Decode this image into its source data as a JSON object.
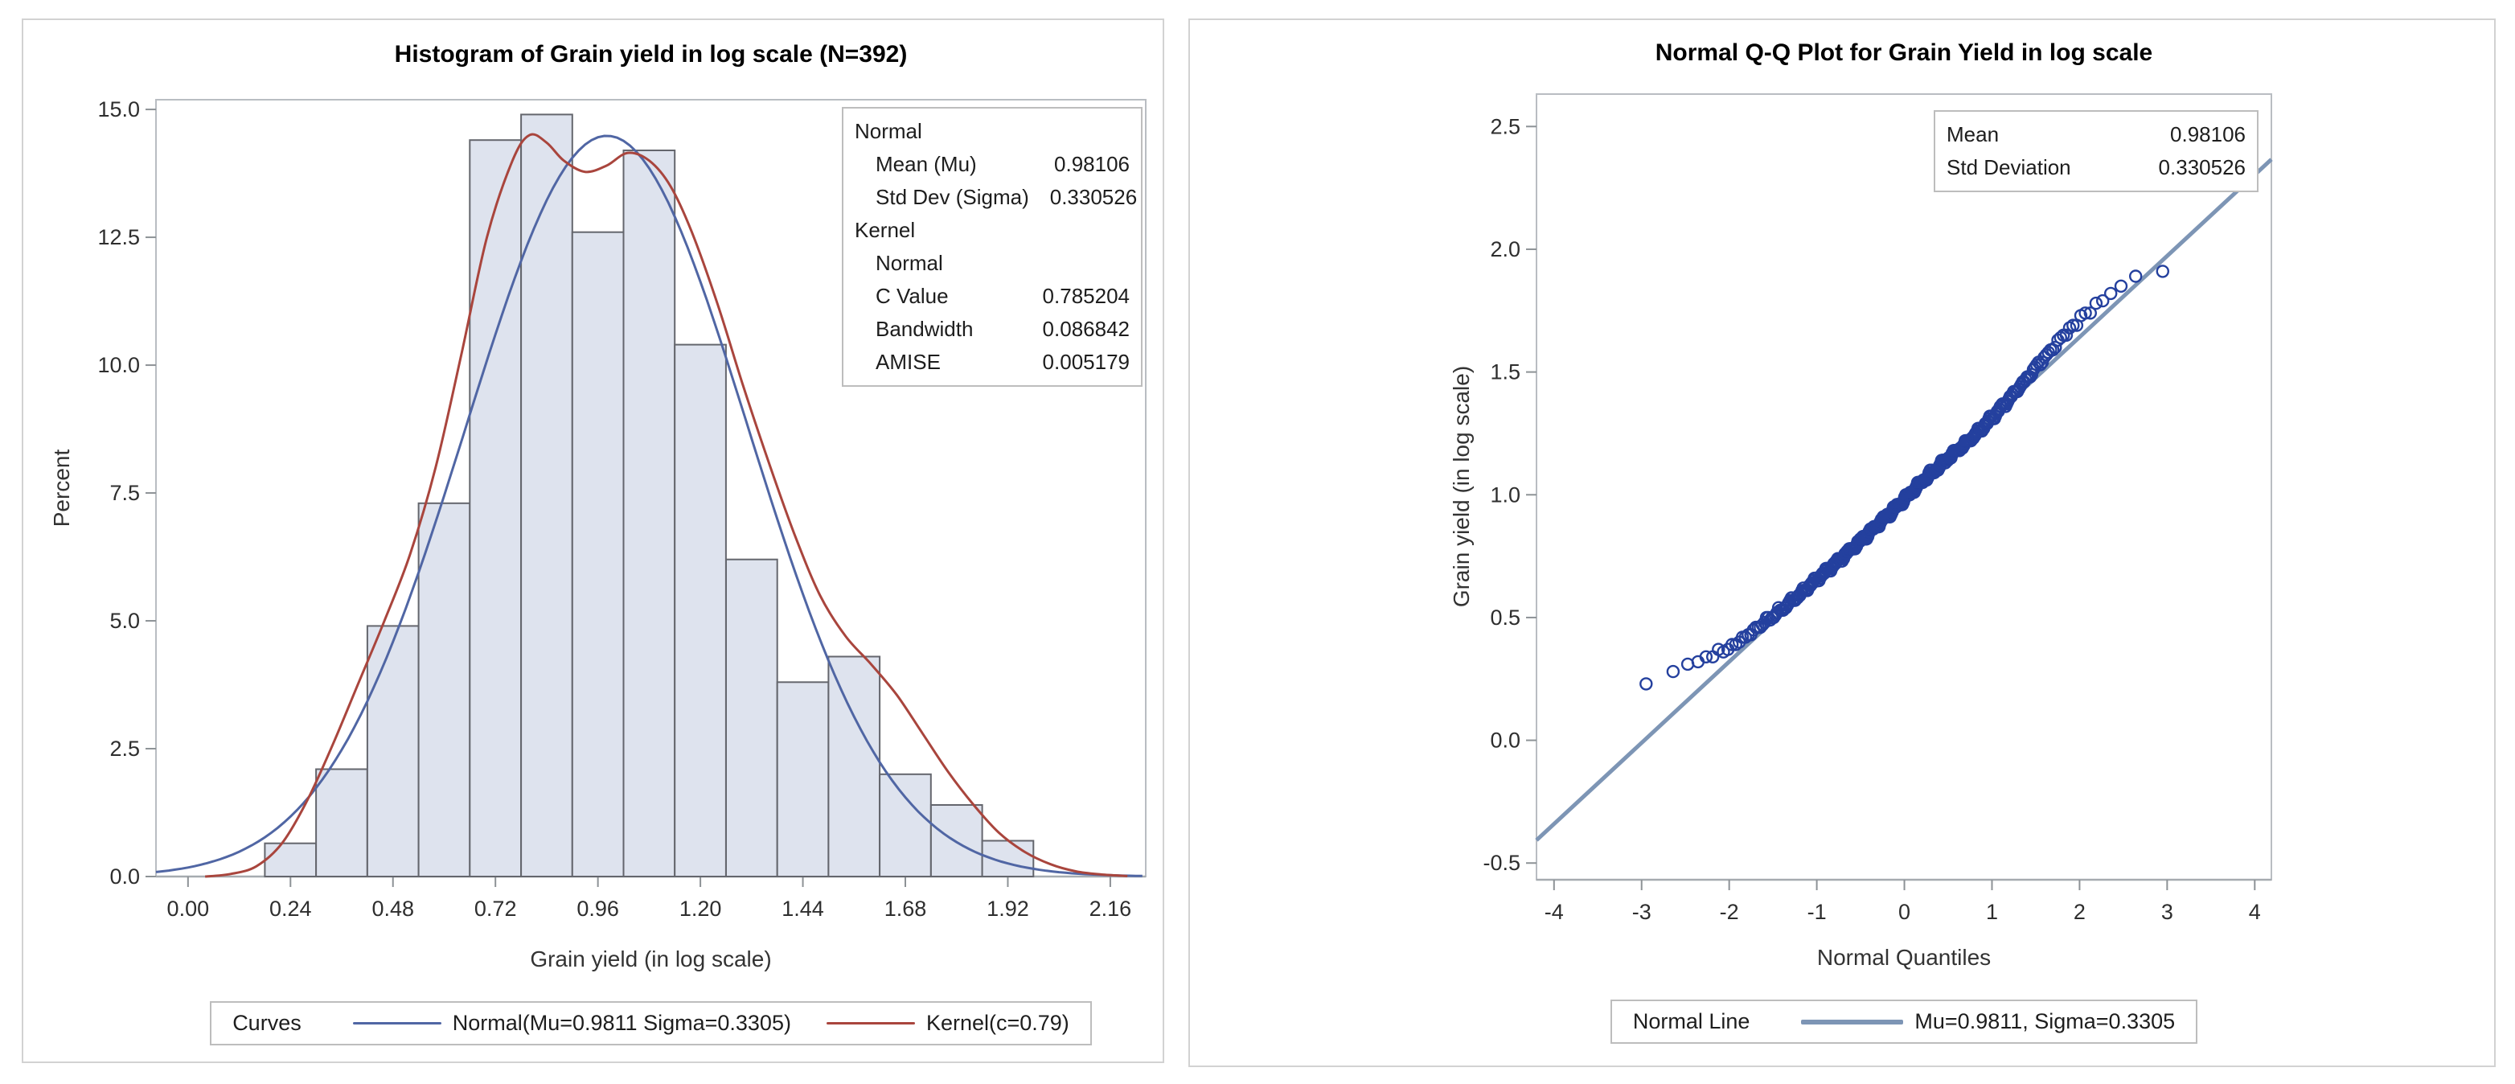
{
  "colors": {
    "panel_border": "#d2d2d2",
    "frame": "#b9bdc2",
    "axis": "#a6abb0",
    "tick": "#8d9296",
    "tick_label": "#2e2e2e",
    "title": "#000000",
    "axis_label": "#333333",
    "bar_fill": "#dee3ee",
    "bar_stroke": "#64666d",
    "normal_curve": "#5066a4",
    "kernel_curve": "#a9453d",
    "qq_point": "#24409e",
    "qq_line": "#7d95b5",
    "box_border": "#bdbdbd"
  },
  "panels": {
    "histogram": {
      "stats_box": {
        "rows": [
          {
            "label": "Normal",
            "value": "",
            "indent": 0
          },
          {
            "label": "Mean (Mu)",
            "value": "0.98106",
            "indent": 1
          },
          {
            "label": "Std Dev (Sigma)",
            "value": "0.330526",
            "indent": 1
          },
          {
            "label": "Kernel",
            "value": "",
            "indent": 0
          },
          {
            "label": "Normal",
            "value": "",
            "indent": 1
          },
          {
            "label": "C Value",
            "value": "0.785204",
            "indent": 1
          },
          {
            "label": "Bandwidth",
            "value": "0.086842",
            "indent": 1
          },
          {
            "label": "AMISE",
            "value": "0.005179",
            "indent": 1
          }
        ]
      },
      "legend": {
        "title": "Curves",
        "items": [
          {
            "label": "Normal(Mu=0.9811 Sigma=0.3305)",
            "color": "#5066a4",
            "thick": 3,
            "len": 110
          },
          {
            "label": "Kernel(c=0.79)",
            "color": "#a9453d",
            "thick": 3,
            "len": 110
          }
        ]
      }
    },
    "qq": {
      "stats_box": {
        "rows": [
          {
            "label": "Mean",
            "value": "0.98106",
            "indent": 0
          },
          {
            "label": "Std Deviation",
            "value": "0.330526",
            "indent": 0
          }
        ]
      },
      "legend": {
        "title": "Normal Line",
        "items": [
          {
            "label": "Mu=0.9811, Sigma=0.3305",
            "color": "#7d95b5",
            "thick": 6,
            "len": 127
          }
        ]
      }
    }
  },
  "chart_data": [
    {
      "type": "bar",
      "subtype": "histogram-with-density-curves",
      "title": "Histogram of Grain yield in log scale (N=392)",
      "xlabel": "Grain yield (in log scale)",
      "ylabel": "Percent",
      "n": 392,
      "bin_width": 0.12,
      "categories": [
        0.24,
        0.36,
        0.48,
        0.6,
        0.72,
        0.84,
        0.96,
        1.08,
        1.2,
        1.32,
        1.44,
        1.56,
        1.68,
        1.8,
        1.92
      ],
      "values": [
        0.65,
        2.1,
        4.9,
        7.3,
        14.4,
        14.9,
        12.6,
        14.2,
        10.4,
        6.2,
        3.8,
        4.3,
        2.0,
        1.4,
        0.7
      ],
      "xlim": [
        -0.075,
        2.243
      ],
      "ylim": [
        0,
        15.19
      ],
      "grid": false,
      "xticks": {
        "values": [
          0.0,
          0.24,
          0.48,
          0.72,
          0.96,
          1.2,
          1.44,
          1.68,
          1.92,
          2.16
        ],
        "labels": [
          "0.00",
          "0.24",
          "0.48",
          "0.72",
          "0.96",
          "1.20",
          "1.44",
          "1.68",
          "1.92",
          "2.16"
        ]
      },
      "yticks": {
        "values": [
          0,
          2.5,
          5,
          7.5,
          10,
          12.5,
          15
        ],
        "labels": [
          "0.0",
          "2.5",
          "5.0",
          "7.5",
          "10.0",
          "12.5",
          "15.0"
        ]
      },
      "normal_curve": {
        "label": "Normal(Mu=0.9811 Sigma=0.3305)",
        "mu": 0.9811,
        "sigma": 0.3305,
        "peak_percent": 14.485
      },
      "kernel_curve": {
        "label": "Kernel(c=0.79)",
        "c_value": 0.785204,
        "bandwidth": 0.086842,
        "amise": 0.005179,
        "points": [
          [
            0.04,
            0.0
          ],
          [
            0.1,
            0.05
          ],
          [
            0.16,
            0.2
          ],
          [
            0.22,
            0.65
          ],
          [
            0.28,
            1.5
          ],
          [
            0.34,
            2.6
          ],
          [
            0.4,
            3.8
          ],
          [
            0.46,
            5.0
          ],
          [
            0.52,
            6.3
          ],
          [
            0.58,
            8.0
          ],
          [
            0.64,
            10.2
          ],
          [
            0.7,
            12.5
          ],
          [
            0.76,
            14.0
          ],
          [
            0.8,
            14.5
          ],
          [
            0.84,
            14.35
          ],
          [
            0.88,
            14.0
          ],
          [
            0.93,
            13.78
          ],
          [
            0.98,
            13.9
          ],
          [
            1.03,
            14.15
          ],
          [
            1.08,
            14.0
          ],
          [
            1.13,
            13.5
          ],
          [
            1.18,
            12.6
          ],
          [
            1.24,
            11.2
          ],
          [
            1.3,
            9.6
          ],
          [
            1.36,
            8.1
          ],
          [
            1.42,
            6.7
          ],
          [
            1.48,
            5.5
          ],
          [
            1.54,
            4.7
          ],
          [
            1.6,
            4.15
          ],
          [
            1.66,
            3.55
          ],
          [
            1.72,
            2.8
          ],
          [
            1.78,
            2.05
          ],
          [
            1.84,
            1.4
          ],
          [
            1.9,
            0.85
          ],
          [
            1.96,
            0.48
          ],
          [
            2.02,
            0.24
          ],
          [
            2.08,
            0.1
          ],
          [
            2.14,
            0.04
          ],
          [
            2.2,
            0.01
          ]
        ]
      }
    },
    {
      "type": "scatter",
      "subtype": "normal-qq-plot",
      "title": "Normal Q-Q Plot for Grain Yield in log scale",
      "xlabel": "Normal Quantiles",
      "ylabel": "Grain yield (in log scale)",
      "n": 392,
      "mu": 0.9811,
      "sigma": 0.3305,
      "plotting_position": "blom (i-0.375)/(n+0.25)",
      "xlim": [
        -4.2,
        4.19
      ],
      "ylim": [
        -0.568,
        2.632
      ],
      "grid": false,
      "xticks": {
        "values": [
          -4,
          -3,
          -2,
          -1,
          0,
          1,
          2,
          3,
          4
        ],
        "labels": [
          "-4",
          "-3",
          "-2",
          "-1",
          "0",
          "1",
          "2",
          "3",
          "4"
        ]
      },
      "yticks": {
        "values": [
          -0.5,
          0,
          0.5,
          1,
          1.5,
          2,
          2.5
        ],
        "labels": [
          "-0.5",
          "0.0",
          "0.5",
          "1.0",
          "1.5",
          "2.0",
          "2.5"
        ]
      },
      "reference_line": {
        "label": "Mu=0.9811, Sigma=0.3305",
        "intercept": 0.9811,
        "slope": 0.3305
      },
      "deviation_profile": [
        [
          -3.0,
          0.235
        ],
        [
          -2.8,
          0.2
        ],
        [
          -2.6,
          0.165
        ],
        [
          -2.4,
          0.125
        ],
        [
          -2.2,
          0.09
        ],
        [
          -2.0,
          0.055
        ],
        [
          -1.8,
          0.04
        ],
        [
          -1.6,
          0.025
        ],
        [
          -1.4,
          0.015
        ],
        [
          -1.2,
          0.008
        ],
        [
          -1.0,
          0.004
        ],
        [
          -0.8,
          0.0
        ],
        [
          -0.6,
          -0.003
        ],
        [
          -0.4,
          -0.004
        ],
        [
          -0.2,
          -0.002
        ],
        [
          0.0,
          0.002
        ],
        [
          0.2,
          0.006
        ],
        [
          0.4,
          0.004
        ],
        [
          0.6,
          0.0
        ],
        [
          0.8,
          -0.004
        ],
        [
          1.0,
          0.002
        ],
        [
          1.2,
          0.015
        ],
        [
          1.4,
          0.03
        ],
        [
          1.6,
          0.05
        ],
        [
          1.8,
          0.065
        ],
        [
          2.0,
          0.072
        ],
        [
          2.2,
          0.07
        ],
        [
          2.4,
          0.06
        ],
        [
          2.6,
          0.045
        ],
        [
          2.75,
          0.02
        ],
        [
          2.85,
          -0.01
        ],
        [
          2.95,
          -0.045
        ]
      ],
      "jitter_waves": [
        [
          47,
          0.008
        ],
        [
          91,
          0.004
        ]
      ],
      "round_y": 0.01
    }
  ]
}
